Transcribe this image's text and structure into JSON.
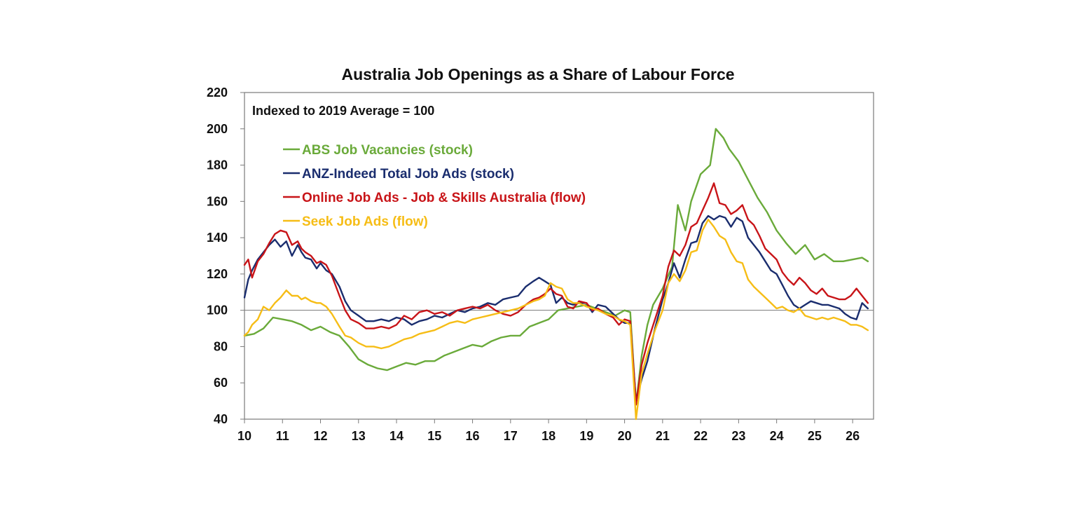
{
  "chart_data": {
    "type": "line",
    "title": "Australia Job Openings as a Share of Labour Force",
    "subtitle": "Indexed to 2019 Average = 100",
    "xlabel": "",
    "ylabel": "",
    "xlim": [
      2010,
      2026.55
    ],
    "ylim": [
      40,
      220
    ],
    "y_ticks": [
      40,
      60,
      80,
      100,
      120,
      140,
      160,
      180,
      200,
      220
    ],
    "x_ticks": [
      10,
      11,
      12,
      13,
      14,
      15,
      16,
      17,
      18,
      19,
      20,
      21,
      22,
      23,
      24,
      25,
      26
    ],
    "x_tick_labels": [
      "10",
      "11",
      "12",
      "13",
      "14",
      "15",
      "16",
      "17",
      "18",
      "19",
      "20",
      "21",
      "22",
      "23",
      "24",
      "25",
      "26"
    ],
    "reference_line": 100,
    "grid": false,
    "legend_position": "upper-left",
    "series": [
      {
        "name": "ABS Job Vacancies (stock)",
        "color": "#6aaa3a",
        "x": [
          2010.0,
          2010.25,
          2010.5,
          2010.75,
          2011.0,
          2011.25,
          2011.5,
          2011.75,
          2012.0,
          2012.25,
          2012.5,
          2012.75,
          2013.0,
          2013.25,
          2013.5,
          2013.75,
          2014.0,
          2014.25,
          2014.5,
          2014.75,
          2015.0,
          2015.25,
          2015.5,
          2015.75,
          2016.0,
          2016.25,
          2016.5,
          2016.75,
          2017.0,
          2017.25,
          2017.5,
          2017.75,
          2018.0,
          2018.25,
          2018.5,
          2018.75,
          2019.0,
          2019.25,
          2019.5,
          2019.75,
          2020.0,
          2020.15,
          2020.3,
          2020.45,
          2020.6,
          2020.75,
          2021.0,
          2021.25,
          2021.4,
          2021.6,
          2021.75,
          2022.0,
          2022.25,
          2022.4,
          2022.6,
          2022.75,
          2023.0,
          2023.25,
          2023.5,
          2023.75,
          2024.0,
          2024.25,
          2024.5,
          2024.75,
          2025.0,
          2025.25,
          2025.5,
          2025.75,
          2026.0,
          2026.25,
          2026.4
        ],
        "y": [
          86,
          87,
          90,
          96,
          95,
          94,
          92,
          89,
          91,
          88,
          86,
          80,
          73,
          70,
          68,
          67,
          69,
          71,
          70,
          72,
          72,
          75,
          77,
          79,
          81,
          80,
          83,
          85,
          86,
          86,
          91,
          93,
          95,
          100,
          101,
          102,
          103,
          101,
          99,
          97,
          100,
          99,
          48,
          75,
          92,
          103,
          112,
          124,
          158,
          144,
          160,
          175,
          180,
          200,
          195,
          189,
          182,
          172,
          162,
          154,
          144,
          137,
          131,
          136,
          128,
          131,
          127,
          127,
          128,
          129,
          127
        ]
      },
      {
        "name": "ANZ-Indeed Total Job Ads (stock)",
        "color": "#1a2d6e",
        "x": [
          2010.0,
          2010.1,
          2010.2,
          2010.35,
          2010.5,
          2010.65,
          2010.8,
          2010.95,
          2011.1,
          2011.25,
          2011.4,
          2011.5,
          2011.6,
          2011.75,
          2011.9,
          2012.0,
          2012.15,
          2012.3,
          2012.5,
          2012.65,
          2012.8,
          2013.0,
          2013.2,
          2013.4,
          2013.6,
          2013.8,
          2014.0,
          2014.2,
          2014.4,
          2014.6,
          2014.8,
          2015.0,
          2015.2,
          2015.4,
          2015.6,
          2015.8,
          2016.0,
          2016.2,
          2016.4,
          2016.6,
          2016.8,
          2017.0,
          2017.2,
          2017.4,
          2017.6,
          2017.75,
          2017.9,
          2018.05,
          2018.2,
          2018.35,
          2018.5,
          2018.65,
          2018.8,
          2019.0,
          2019.15,
          2019.3,
          2019.5,
          2019.7,
          2019.85,
          2020.0,
          2020.15,
          2020.3,
          2020.45,
          2020.6,
          2020.8,
          2021.0,
          2021.15,
          2021.3,
          2021.45,
          2021.6,
          2021.75,
          2021.9,
          2022.05,
          2022.2,
          2022.35,
          2022.5,
          2022.65,
          2022.8,
          2022.95,
          2023.1,
          2023.25,
          2023.4,
          2023.55,
          2023.7,
          2023.85,
          2024.0,
          2024.15,
          2024.3,
          2024.45,
          2024.6,
          2024.75,
          2024.9,
          2025.05,
          2025.2,
          2025.35,
          2025.5,
          2025.65,
          2025.8,
          2025.95,
          2026.1,
          2026.25,
          2026.4
        ],
        "y": [
          107,
          117,
          122,
          128,
          132,
          136,
          139,
          135,
          138,
          130,
          136,
          132,
          129,
          128,
          123,
          126,
          122,
          120,
          113,
          105,
          100,
          97,
          94,
          94,
          95,
          94,
          96,
          95,
          92,
          94,
          95,
          97,
          96,
          98,
          100,
          99,
          101,
          102,
          104,
          103,
          106,
          107,
          108,
          113,
          116,
          118,
          116,
          114,
          104,
          107,
          104,
          103,
          104,
          104,
          99,
          103,
          102,
          98,
          95,
          93,
          93,
          50,
          62,
          72,
          90,
          106,
          115,
          126,
          118,
          128,
          137,
          138,
          148,
          152,
          150,
          152,
          151,
          146,
          151,
          149,
          140,
          136,
          132,
          127,
          122,
          120,
          114,
          108,
          103,
          101,
          103,
          105,
          104,
          103,
          103,
          102,
          101,
          98,
          96,
          95,
          104,
          101
        ]
      },
      {
        "name": "Online Job Ads - Job & Skills Australia (flow)",
        "color": "#c81418",
        "x": [
          2010.0,
          2010.1,
          2010.2,
          2010.35,
          2010.5,
          2010.65,
          2010.8,
          2010.95,
          2011.1,
          2011.25,
          2011.4,
          2011.5,
          2011.6,
          2011.75,
          2011.9,
          2012.0,
          2012.15,
          2012.3,
          2012.5,
          2012.65,
          2012.8,
          2013.0,
          2013.2,
          2013.4,
          2013.6,
          2013.8,
          2014.0,
          2014.2,
          2014.4,
          2014.6,
          2014.8,
          2015.0,
          2015.2,
          2015.4,
          2015.6,
          2015.8,
          2016.0,
          2016.2,
          2016.4,
          2016.6,
          2016.8,
          2017.0,
          2017.2,
          2017.4,
          2017.6,
          2017.75,
          2017.9,
          2018.05,
          2018.2,
          2018.35,
          2018.5,
          2018.65,
          2018.8,
          2019.0,
          2019.15,
          2019.3,
          2019.5,
          2019.7,
          2019.85,
          2020.0,
          2020.15,
          2020.3,
          2020.45,
          2020.6,
          2020.8,
          2021.0,
          2021.15,
          2021.3,
          2021.45,
          2021.6,
          2021.75,
          2021.9,
          2022.05,
          2022.2,
          2022.35,
          2022.5,
          2022.65,
          2022.8,
          2022.95,
          2023.1,
          2023.25,
          2023.4,
          2023.55,
          2023.7,
          2023.85,
          2024.0,
          2024.15,
          2024.3,
          2024.45,
          2024.6,
          2024.75,
          2024.9,
          2025.05,
          2025.2,
          2025.35,
          2025.5,
          2025.65,
          2025.8,
          2025.95,
          2026.1,
          2026.25,
          2026.4
        ],
        "y": [
          125,
          128,
          118,
          127,
          131,
          137,
          142,
          144,
          143,
          136,
          138,
          134,
          132,
          130,
          126,
          127,
          125,
          119,
          108,
          100,
          95,
          93,
          90,
          90,
          91,
          90,
          92,
          97,
          95,
          99,
          100,
          98,
          99,
          97,
          100,
          101,
          102,
          101,
          103,
          100,
          98,
          97,
          99,
          103,
          106,
          107,
          109,
          112,
          109,
          108,
          102,
          101,
          105,
          104,
          100,
          101,
          98,
          96,
          92,
          95,
          94,
          48,
          70,
          82,
          95,
          108,
          124,
          133,
          130,
          136,
          146,
          148,
          155,
          162,
          170,
          159,
          158,
          153,
          155,
          158,
          150,
          147,
          141,
          134,
          131,
          128,
          121,
          117,
          114,
          118,
          115,
          111,
          109,
          112,
          108,
          107,
          106,
          106,
          108,
          112,
          108,
          104
        ]
      },
      {
        "name": "Seek Job Ads (flow)",
        "color": "#f6bd16",
        "x": [
          2010.0,
          2010.1,
          2010.2,
          2010.35,
          2010.5,
          2010.65,
          2010.8,
          2010.95,
          2011.1,
          2011.25,
          2011.4,
          2011.5,
          2011.6,
          2011.75,
          2011.9,
          2012.0,
          2012.15,
          2012.3,
          2012.5,
          2012.65,
          2012.8,
          2013.0,
          2013.2,
          2013.4,
          2013.6,
          2013.8,
          2014.0,
          2014.2,
          2014.4,
          2014.6,
          2014.8,
          2015.0,
          2015.2,
          2015.4,
          2015.6,
          2015.8,
          2016.0,
          2016.2,
          2016.4,
          2016.6,
          2016.8,
          2017.0,
          2017.2,
          2017.4,
          2017.6,
          2017.75,
          2017.9,
          2018.05,
          2018.2,
          2018.35,
          2018.5,
          2018.65,
          2018.8,
          2019.0,
          2019.15,
          2019.3,
          2019.5,
          2019.7,
          2019.85,
          2020.0,
          2020.15,
          2020.3,
          2020.45,
          2020.6,
          2020.8,
          2021.0,
          2021.15,
          2021.3,
          2021.45,
          2021.6,
          2021.75,
          2021.9,
          2022.05,
          2022.2,
          2022.35,
          2022.5,
          2022.65,
          2022.8,
          2022.95,
          2023.1,
          2023.25,
          2023.4,
          2023.55,
          2023.7,
          2023.85,
          2024.0,
          2024.15,
          2024.3,
          2024.45,
          2024.6,
          2024.75,
          2024.9,
          2025.05,
          2025.2,
          2025.35,
          2025.5,
          2025.65,
          2025.8,
          2025.95,
          2026.1,
          2026.25,
          2026.4
        ],
        "y": [
          86,
          88,
          92,
          95,
          102,
          100,
          104,
          107,
          111,
          108,
          108,
          106,
          107,
          105,
          104,
          104,
          102,
          98,
          91,
          86,
          85,
          82,
          80,
          80,
          79,
          80,
          82,
          84,
          85,
          87,
          88,
          89,
          91,
          93,
          94,
          93,
          95,
          96,
          97,
          98,
          99,
          100,
          101,
          103,
          105,
          106,
          108,
          115,
          113,
          112,
          106,
          104,
          104,
          102,
          101,
          100,
          98,
          97,
          95,
          94,
          92,
          40,
          65,
          76,
          89,
          100,
          115,
          120,
          116,
          122,
          132,
          133,
          144,
          150,
          146,
          141,
          139,
          132,
          127,
          126,
          117,
          113,
          110,
          107,
          104,
          101,
          102,
          100,
          99,
          101,
          97,
          96,
          95,
          96,
          95,
          96,
          95,
          94,
          92,
          92,
          91,
          89
        ]
      }
    ]
  }
}
